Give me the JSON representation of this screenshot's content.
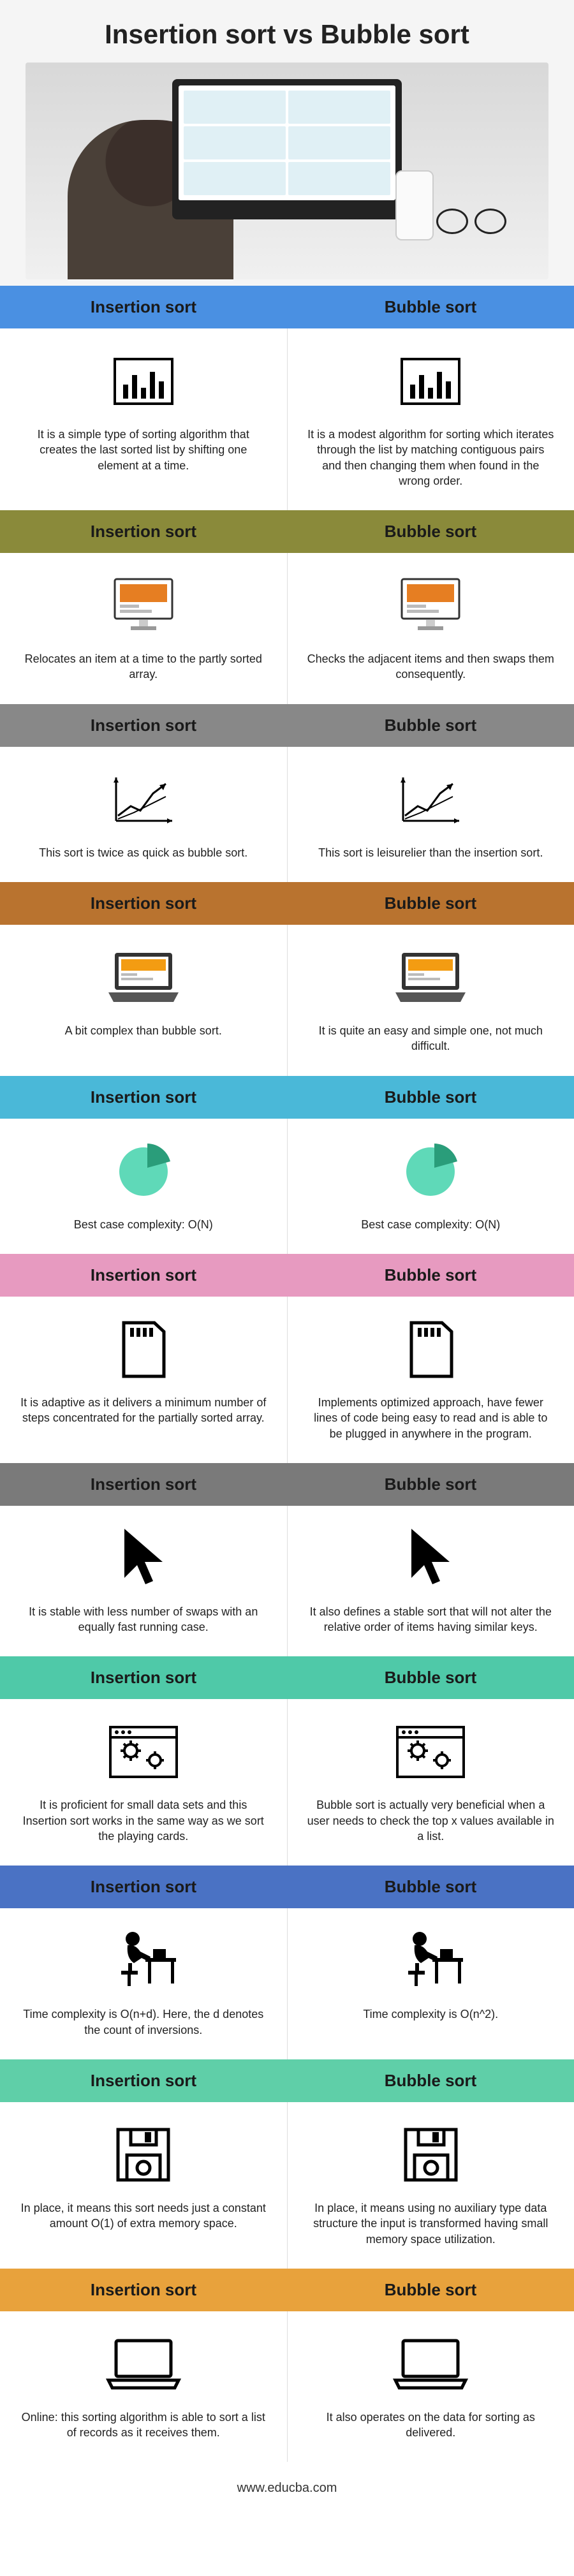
{
  "hero": {
    "title": "Insertion sort vs Bubble sort"
  },
  "labels": {
    "left": "Insertion sort",
    "right": "Bubble sort"
  },
  "sections": [
    {
      "bg": "#4a90e2",
      "textColor": "#1a1a1a",
      "icon": "chart",
      "left": "It is a simple type of sorting algorithm that creates the last sorted list by shifting one element at a time.",
      "right": "It is a modest algorithm for sorting which iterates through the list by matching contiguous pairs and then changing them when found in the wrong order."
    },
    {
      "bg": "#8a8a3a",
      "textColor": "#1a1a1a",
      "icon": "monitor",
      "iconColor": "#e67e22",
      "left": "Relocates an item at a time to the partly sorted array.",
      "right": "Checks the adjacent items and then swaps them consequently."
    },
    {
      "bg": "#888888",
      "textColor": "#1a1a1a",
      "icon": "growth",
      "left": "This sort is twice as quick as bubble sort.",
      "right": "This sort is leisurelier than the insertion sort."
    },
    {
      "bg": "#b9732f",
      "textColor": "#1a1a1a",
      "icon": "laptop",
      "iconColor": "#f39c12",
      "left": "A bit complex than bubble sort.",
      "right": "It is quite an easy and simple one, not much difficult."
    },
    {
      "bg": "#4ab8d8",
      "textColor": "#1a1a1a",
      "icon": "pie",
      "iconColor": "#5fd9b8",
      "left": "Best case complexity: O(N)",
      "right": "Best case complexity: O(N)"
    },
    {
      "bg": "#e79ac0",
      "textColor": "#1a1a1a",
      "icon": "sdcard",
      "left": "It is adaptive as it delivers a minimum number of steps concentrated for the partially sorted array.",
      "right": "Implements optimized approach, have fewer lines of code being easy to read and is able to be plugged in anywhere in the program."
    },
    {
      "bg": "#7a7a7a",
      "textColor": "#1a1a1a",
      "icon": "cursor",
      "left": "It is stable with less number of swaps with an equally fast running case.",
      "right": "It also defines a stable sort that will not alter the relative order of items having similar keys."
    },
    {
      "bg": "#4fc9a8",
      "textColor": "#1a1a1a",
      "icon": "gears",
      "left": "It is proficient for small data sets and this Insertion sort works in the same way as we sort the playing cards.",
      "right": "Bubble sort is actually very beneficial when a user needs to check the top x values available in a list."
    },
    {
      "bg": "#4a72c4",
      "textColor": "#1a1a1a",
      "icon": "person-desk",
      "left": "Time complexity is O(n+d). Here, the d denotes the count of inversions.",
      "right": "Time complexity is O(n^2)."
    },
    {
      "bg": "#5fcfa8",
      "textColor": "#1a1a1a",
      "icon": "floppy",
      "left": "In place, it means this sort needs just a constant amount O(1) of extra memory space.",
      "right": "In place, it means using no auxiliary type data structure the input is transformed having small memory space utilization."
    },
    {
      "bg": "#e8a23c",
      "textColor": "#1a1a1a",
      "icon": "laptop-outline",
      "left": "Online: this sorting algorithm is able to sort a list of records as it receives them.",
      "right": "It also operates on the data for sorting as delivered."
    }
  ],
  "footer": {
    "url": "www.educba.com"
  }
}
